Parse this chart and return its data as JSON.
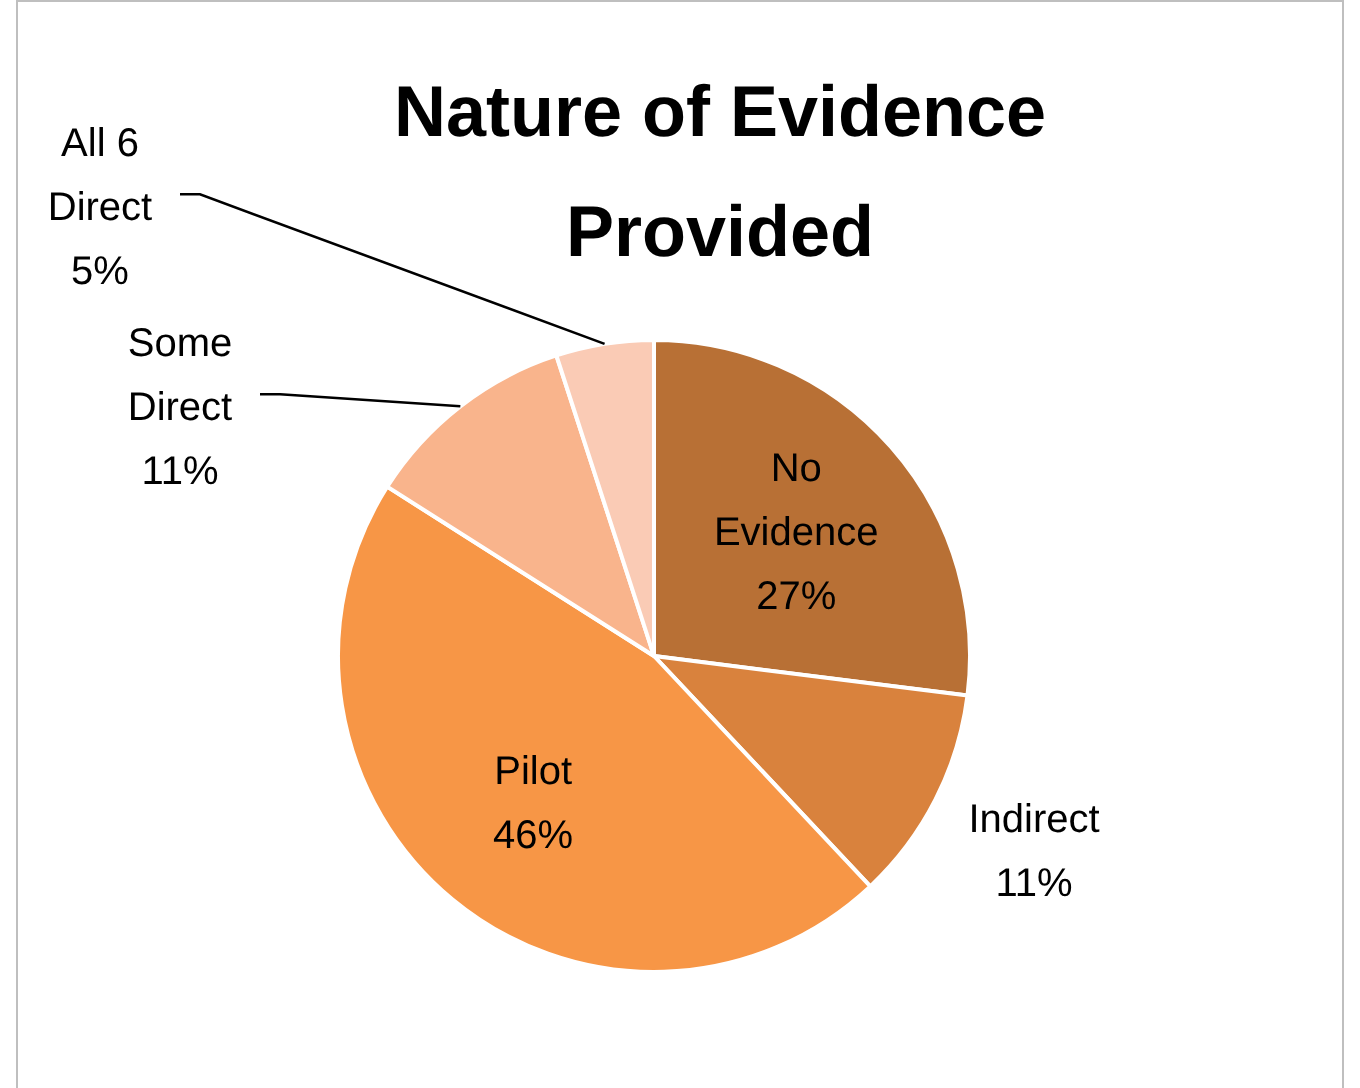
{
  "chart_data": {
    "type": "pie",
    "title": "Nature of Evidence Provided",
    "categories": [
      "No Evidence",
      "Indirect",
      "Pilot",
      "Some Direct",
      "All 6 Direct"
    ],
    "values": [
      27,
      11,
      46,
      11,
      5
    ],
    "colors": [
      "#b87035",
      "#d9823d",
      "#f79646",
      "#f9b48c",
      "#facbb5"
    ],
    "value_labels": [
      "27%",
      "11%",
      "46%",
      "11%",
      "5%"
    ]
  }
}
